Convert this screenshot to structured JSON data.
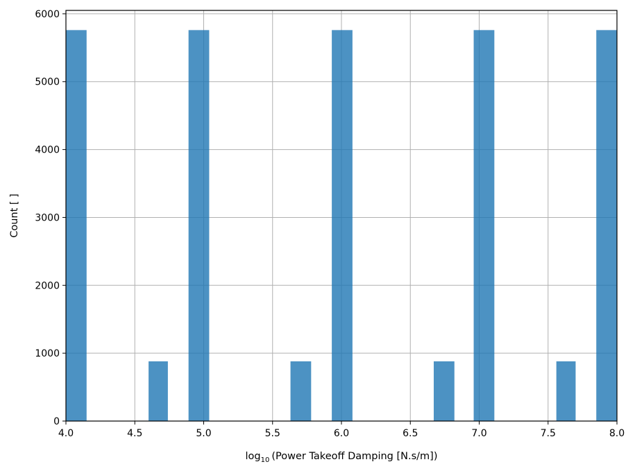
{
  "chart_data": {
    "type": "bar",
    "subtype": "histogram",
    "xlabel": "log",
    "xlabel_subscript": "10",
    "xlabel_rest": "(Power Takeoff Damping [N.s/m])",
    "ylabel": "Count [ ]",
    "xlim": [
      4.0,
      8.0
    ],
    "ylim": [
      0,
      6050
    ],
    "grid": true,
    "bar_color": "#1f77b4",
    "x_ticks": [
      4.0,
      4.5,
      5.0,
      5.5,
      6.0,
      6.5,
      7.0,
      7.5,
      8.0
    ],
    "x_tick_labels": [
      "4.0",
      "4.5",
      "5.0",
      "5.5",
      "6.0",
      "6.5",
      "7.0",
      "7.5",
      "8.0"
    ],
    "y_ticks": [
      0,
      1000,
      2000,
      3000,
      4000,
      5000,
      6000
    ],
    "y_tick_labels": [
      "0",
      "1000",
      "2000",
      "3000",
      "4000",
      "5000",
      "6000"
    ],
    "bins": [
      {
        "x0": 4.0,
        "x1": 4.15,
        "count": 5760
      },
      {
        "x0": 4.6,
        "x1": 4.74,
        "count": 880
      },
      {
        "x0": 4.89,
        "x1": 5.04,
        "count": 5760
      },
      {
        "x0": 5.63,
        "x1": 5.78,
        "count": 880
      },
      {
        "x0": 5.93,
        "x1": 6.08,
        "count": 5760
      },
      {
        "x0": 6.67,
        "x1": 6.82,
        "count": 880
      },
      {
        "x0": 6.96,
        "x1": 7.11,
        "count": 5760
      },
      {
        "x0": 7.56,
        "x1": 7.7,
        "count": 880
      },
      {
        "x0": 7.85,
        "x1": 8.0,
        "count": 5760
      }
    ]
  }
}
